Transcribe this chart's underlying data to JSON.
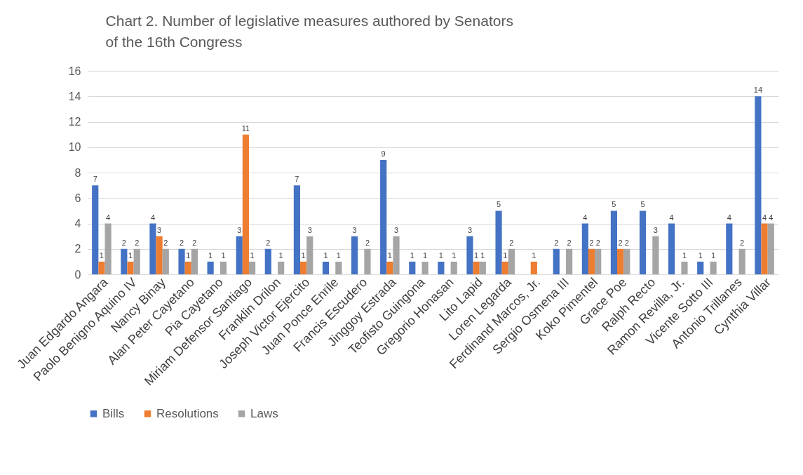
{
  "chart_data": {
    "type": "bar",
    "title": "Chart 2. Number of legislative measures authored by Senators\nof the 16th Congress",
    "categories": [
      "Juan Edgardo Angara",
      "Paolo Benigno Aquino IV",
      "Nancy Binay",
      "Alan Peter Cayetano",
      "Pia Cayetano",
      "Miriam Defensor Santiago",
      "Franklin Drilon",
      "Joseph Victor Ejercito",
      "Juan Ponce Enrile",
      "Francis Escudero",
      "Jinggoy Estrada",
      "Teofisto Guingona",
      "Gregorio Honasan",
      "Lito Lapid",
      "Loren Legarda",
      "Ferdinand Marcos, Jr.",
      "Sergio Osmena III",
      "Koko Pimentel",
      "Grace Poe",
      "Ralph Recto",
      "Ramon Revilla, Jr.",
      "Vicente Sotto III",
      "Antonio Trillanes",
      "Cynthia Villar"
    ],
    "series": [
      {
        "name": "Bills",
        "color": "#4472c4",
        "values": [
          7,
          2,
          4,
          2,
          1,
          3,
          2,
          7,
          1,
          3,
          9,
          1,
          1,
          3,
          5,
          null,
          2,
          4,
          5,
          5,
          4,
          1,
          4,
          14
        ]
      },
      {
        "name": "Resolutions",
        "color": "#ed7d31",
        "values": [
          1,
          1,
          3,
          1,
          null,
          11,
          null,
          1,
          null,
          null,
          1,
          null,
          null,
          1,
          1,
          1,
          null,
          2,
          2,
          null,
          null,
          null,
          null,
          4
        ]
      },
      {
        "name": "Laws",
        "color": "#a5a5a5",
        "values": [
          4,
          2,
          2,
          2,
          1,
          1,
          1,
          3,
          1,
          2,
          3,
          1,
          1,
          1,
          2,
          null,
          2,
          2,
          2,
          3,
          1,
          1,
          2,
          4
        ]
      }
    ],
    "ylim": [
      0,
      16
    ],
    "yticks": [
      0,
      2,
      4,
      6,
      8,
      10,
      12,
      14,
      16
    ],
    "grid": "y",
    "legend": "bottom",
    "data_labels": true
  }
}
